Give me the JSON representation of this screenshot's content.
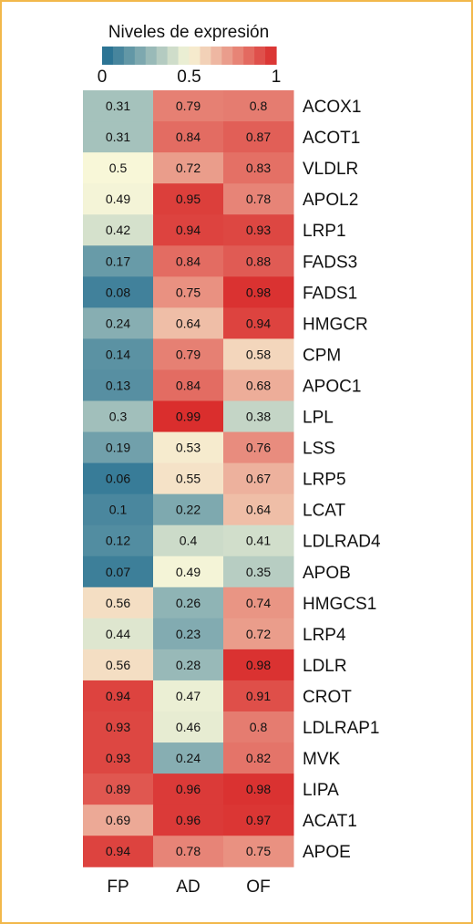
{
  "colors": {
    "low": "#1e6b8f",
    "mid": "#f8f7d8",
    "high": "#d92a2a",
    "frame": "#f2b84b"
  },
  "chart_data": {
    "type": "heatmap",
    "legend": {
      "title": "Niveles de expresión",
      "ticks": [
        "0",
        "0.5",
        "1"
      ],
      "range": [
        0,
        1
      ]
    },
    "columns": [
      "FP",
      "AD",
      "OF"
    ],
    "rows": [
      {
        "gene": "ACOX1",
        "values": [
          "0.31",
          "0.79",
          "0.8"
        ]
      },
      {
        "gene": "ACOT1",
        "values": [
          "0.31",
          "0.84",
          "0.87"
        ]
      },
      {
        "gene": "VLDLR",
        "values": [
          "0.5",
          "0.72",
          "0.83"
        ]
      },
      {
        "gene": "APOL2",
        "values": [
          "0.49",
          "0.95",
          "0.78"
        ]
      },
      {
        "gene": "LRP1",
        "values": [
          "0.42",
          "0.94",
          "0.93"
        ]
      },
      {
        "gene": "FADS3",
        "values": [
          "0.17",
          "0.84",
          "0.88"
        ]
      },
      {
        "gene": "FADS1",
        "values": [
          "0.08",
          "0.75",
          "0.98"
        ]
      },
      {
        "gene": "HMGCR",
        "values": [
          "0.24",
          "0.64",
          "0.94"
        ]
      },
      {
        "gene": "CPM",
        "values": [
          "0.14",
          "0.79",
          "0.58"
        ]
      },
      {
        "gene": "APOC1",
        "values": [
          "0.13",
          "0.84",
          "0.68"
        ]
      },
      {
        "gene": "LPL",
        "values": [
          "0.3",
          "0.99",
          "0.38"
        ]
      },
      {
        "gene": "LSS",
        "values": [
          "0.19",
          "0.53",
          "0.76"
        ]
      },
      {
        "gene": "LRP5",
        "values": [
          "0.06",
          "0.55",
          "0.67"
        ]
      },
      {
        "gene": "LCAT",
        "values": [
          "0.1",
          "0.22",
          "0.64"
        ]
      },
      {
        "gene": "LDLRAD4",
        "values": [
          "0.12",
          "0.4",
          "0.41"
        ]
      },
      {
        "gene": "APOB",
        "values": [
          "0.07",
          "0.49",
          "0.35"
        ]
      },
      {
        "gene": "HMGCS1",
        "values": [
          "0.56",
          "0.26",
          "0.74"
        ]
      },
      {
        "gene": "LRP4",
        "values": [
          "0.44",
          "0.23",
          "0.72"
        ]
      },
      {
        "gene": "LDLR",
        "values": [
          "0.56",
          "0.28",
          "0.98"
        ]
      },
      {
        "gene": "CROT",
        "values": [
          "0.94",
          "0.47",
          "0.91"
        ]
      },
      {
        "gene": "LDLRAP1",
        "values": [
          "0.93",
          "0.46",
          "0.8"
        ]
      },
      {
        "gene": "MVK",
        "values": [
          "0.93",
          "0.24",
          "0.82"
        ]
      },
      {
        "gene": "LIPA",
        "values": [
          "0.89",
          "0.96",
          "0.98"
        ]
      },
      {
        "gene": "ACAT1",
        "values": [
          "0.69",
          "0.96",
          "0.97"
        ]
      },
      {
        "gene": "APOE",
        "values": [
          "0.94",
          "0.78",
          "0.75"
        ]
      }
    ]
  }
}
